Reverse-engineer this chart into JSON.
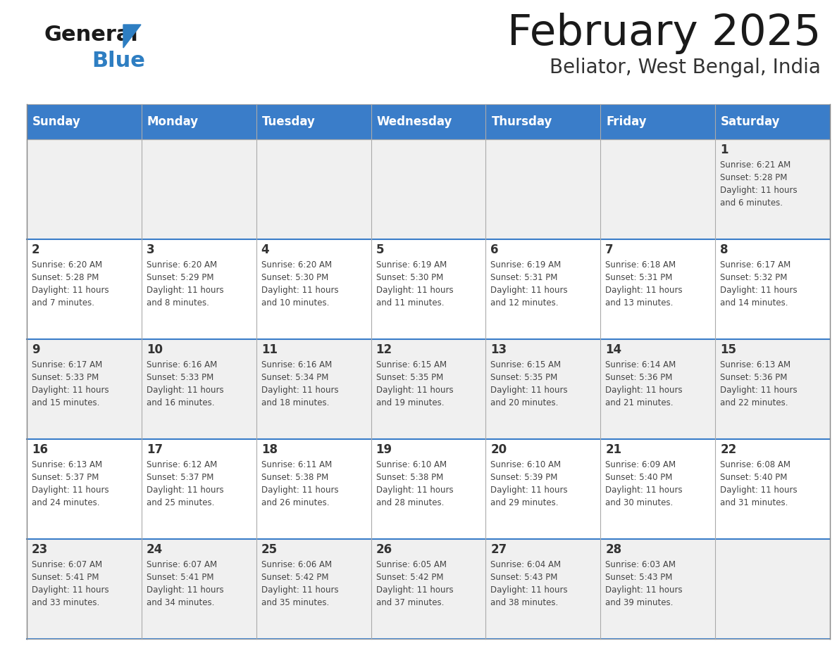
{
  "title": "February 2025",
  "subtitle": "Beliator, West Bengal, India",
  "header_bg": "#3A7DC9",
  "header_text_color": "#FFFFFF",
  "days_of_week": [
    "Sunday",
    "Monday",
    "Tuesday",
    "Wednesday",
    "Thursday",
    "Friday",
    "Saturday"
  ],
  "cell_bg_even": "#F0F0F0",
  "cell_bg_odd": "#FFFFFF",
  "border_color": "#3A7DC9",
  "text_color": "#444444",
  "day_num_color": "#333333",
  "calendar_data": [
    [
      null,
      null,
      null,
      null,
      null,
      null,
      {
        "day": 1,
        "sunrise": "6:21 AM",
        "sunset": "5:28 PM",
        "daylight": "11 hours and 6 minutes."
      }
    ],
    [
      {
        "day": 2,
        "sunrise": "6:20 AM",
        "sunset": "5:28 PM",
        "daylight": "11 hours and 7 minutes."
      },
      {
        "day": 3,
        "sunrise": "6:20 AM",
        "sunset": "5:29 PM",
        "daylight": "11 hours and 8 minutes."
      },
      {
        "day": 4,
        "sunrise": "6:20 AM",
        "sunset": "5:30 PM",
        "daylight": "11 hours and 10 minutes."
      },
      {
        "day": 5,
        "sunrise": "6:19 AM",
        "sunset": "5:30 PM",
        "daylight": "11 hours and 11 minutes."
      },
      {
        "day": 6,
        "sunrise": "6:19 AM",
        "sunset": "5:31 PM",
        "daylight": "11 hours and 12 minutes."
      },
      {
        "day": 7,
        "sunrise": "6:18 AM",
        "sunset": "5:31 PM",
        "daylight": "11 hours and 13 minutes."
      },
      {
        "day": 8,
        "sunrise": "6:17 AM",
        "sunset": "5:32 PM",
        "daylight": "11 hours and 14 minutes."
      }
    ],
    [
      {
        "day": 9,
        "sunrise": "6:17 AM",
        "sunset": "5:33 PM",
        "daylight": "11 hours and 15 minutes."
      },
      {
        "day": 10,
        "sunrise": "6:16 AM",
        "sunset": "5:33 PM",
        "daylight": "11 hours and 16 minutes."
      },
      {
        "day": 11,
        "sunrise": "6:16 AM",
        "sunset": "5:34 PM",
        "daylight": "11 hours and 18 minutes."
      },
      {
        "day": 12,
        "sunrise": "6:15 AM",
        "sunset": "5:35 PM",
        "daylight": "11 hours and 19 minutes."
      },
      {
        "day": 13,
        "sunrise": "6:15 AM",
        "sunset": "5:35 PM",
        "daylight": "11 hours and 20 minutes."
      },
      {
        "day": 14,
        "sunrise": "6:14 AM",
        "sunset": "5:36 PM",
        "daylight": "11 hours and 21 minutes."
      },
      {
        "day": 15,
        "sunrise": "6:13 AM",
        "sunset": "5:36 PM",
        "daylight": "11 hours and 22 minutes."
      }
    ],
    [
      {
        "day": 16,
        "sunrise": "6:13 AM",
        "sunset": "5:37 PM",
        "daylight": "11 hours and 24 minutes."
      },
      {
        "day": 17,
        "sunrise": "6:12 AM",
        "sunset": "5:37 PM",
        "daylight": "11 hours and 25 minutes."
      },
      {
        "day": 18,
        "sunrise": "6:11 AM",
        "sunset": "5:38 PM",
        "daylight": "11 hours and 26 minutes."
      },
      {
        "day": 19,
        "sunrise": "6:10 AM",
        "sunset": "5:38 PM",
        "daylight": "11 hours and 28 minutes."
      },
      {
        "day": 20,
        "sunrise": "6:10 AM",
        "sunset": "5:39 PM",
        "daylight": "11 hours and 29 minutes."
      },
      {
        "day": 21,
        "sunrise": "6:09 AM",
        "sunset": "5:40 PM",
        "daylight": "11 hours and 30 minutes."
      },
      {
        "day": 22,
        "sunrise": "6:08 AM",
        "sunset": "5:40 PM",
        "daylight": "11 hours and 31 minutes."
      }
    ],
    [
      {
        "day": 23,
        "sunrise": "6:07 AM",
        "sunset": "5:41 PM",
        "daylight": "11 hours and 33 minutes."
      },
      {
        "day": 24,
        "sunrise": "6:07 AM",
        "sunset": "5:41 PM",
        "daylight": "11 hours and 34 minutes."
      },
      {
        "day": 25,
        "sunrise": "6:06 AM",
        "sunset": "5:42 PM",
        "daylight": "11 hours and 35 minutes."
      },
      {
        "day": 26,
        "sunrise": "6:05 AM",
        "sunset": "5:42 PM",
        "daylight": "11 hours and 37 minutes."
      },
      {
        "day": 27,
        "sunrise": "6:04 AM",
        "sunset": "5:43 PM",
        "daylight": "11 hours and 38 minutes."
      },
      {
        "day": 28,
        "sunrise": "6:03 AM",
        "sunset": "5:43 PM",
        "daylight": "11 hours and 39 minutes."
      },
      null
    ]
  ],
  "logo_general_color": "#1a1a1a",
  "logo_blue_color": "#2E7EC2",
  "logo_triangle_color": "#2E7EC2"
}
